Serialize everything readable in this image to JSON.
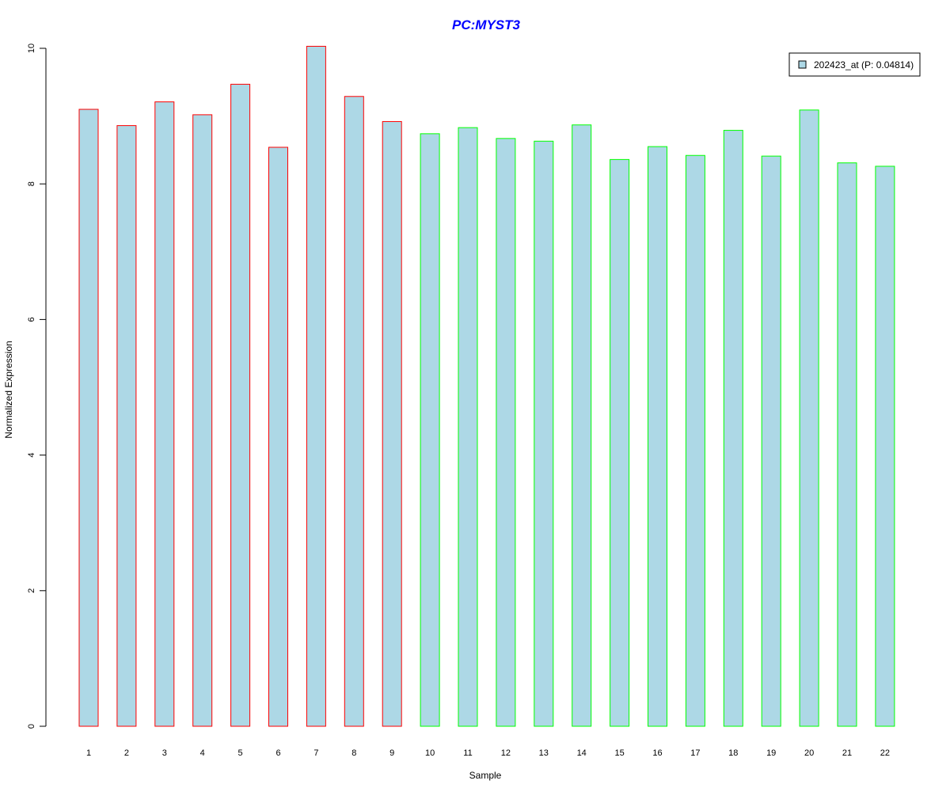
{
  "chart_data": {
    "type": "bar",
    "title": "PC:MYST3",
    "xlabel": "Sample",
    "ylabel": "Normalized Expression",
    "categories": [
      "1",
      "2",
      "3",
      "4",
      "5",
      "6",
      "7",
      "8",
      "9",
      "10",
      "11",
      "12",
      "13",
      "14",
      "15",
      "16",
      "17",
      "18",
      "19",
      "20",
      "21",
      "22"
    ],
    "series": [
      {
        "name": "202423_at (P: 0.04814)",
        "values": [
          9.1,
          8.86,
          9.21,
          9.02,
          9.47,
          8.54,
          10.03,
          9.29,
          8.92,
          8.74,
          8.83,
          8.67,
          8.63,
          8.87,
          8.36,
          8.55,
          8.42,
          8.79,
          8.41,
          9.09,
          8.31,
          8.26
        ],
        "groups": [
          "red",
          "red",
          "red",
          "red",
          "red",
          "red",
          "red",
          "red",
          "red",
          "green",
          "green",
          "green",
          "green",
          "green",
          "green",
          "green",
          "green",
          "green",
          "green",
          "green",
          "green",
          "green"
        ]
      }
    ],
    "yticks": [
      0,
      2,
      4,
      6,
      8,
      10
    ],
    "ylim": [
      0,
      10
    ],
    "fill_color": "#ADD8E6",
    "border_colors": {
      "red": "#FF0000",
      "green": "#00FF00"
    },
    "title_color": "#0000FF",
    "legend_position": "top-right",
    "grid": false
  }
}
